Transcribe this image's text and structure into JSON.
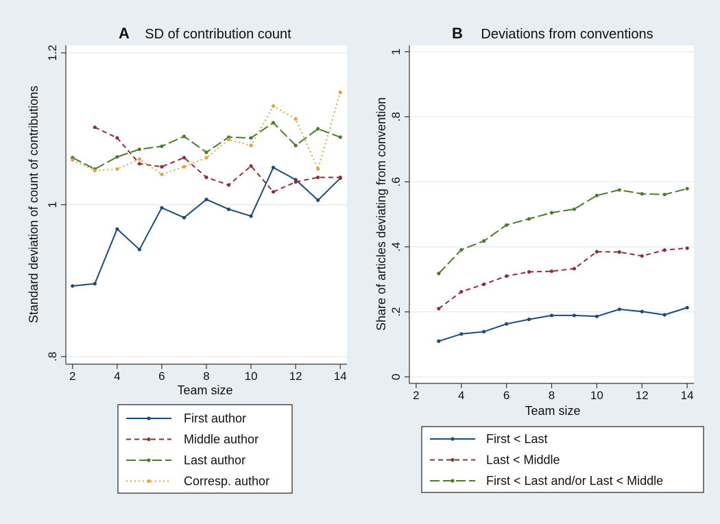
{
  "colors": {
    "navy": "#1a4a7a",
    "maroon": "#8f2d35",
    "green": "#4b7a2b",
    "orange": "#e6a040",
    "background": "#e9eef2"
  },
  "chart_data": [
    {
      "type": "line",
      "panel_letter": "A",
      "title": "SD of contribution count",
      "xlabel": "Team size",
      "ylabel": "Standard deviation of count of contributions",
      "xlim": [
        1.7,
        14.3
      ],
      "ylim": [
        0.79,
        1.21
      ],
      "xticks": [
        2,
        4,
        6,
        8,
        10,
        12,
        14
      ],
      "xtick_labels": [
        "2",
        "4",
        "6",
        "8",
        "10",
        "12",
        "14"
      ],
      "yticks": [
        0.8,
        1.0,
        1.2
      ],
      "ytick_labels": [
        ".8",
        "1",
        "1.2"
      ],
      "grid": true,
      "legend_placement": "below",
      "series": [
        {
          "name": "First author",
          "color": "#1a4a7a",
          "dash": "solid",
          "x": [
            2,
            3,
            4,
            5,
            6,
            7,
            8,
            9,
            10,
            11,
            12,
            13,
            14
          ],
          "y": [
            0.893,
            0.896,
            0.968,
            0.941,
            0.996,
            0.983,
            1.007,
            0.994,
            0.985,
            1.049,
            1.033,
            1.006,
            1.035
          ]
        },
        {
          "name": "Middle author",
          "color": "#8f2d35",
          "dash": "dash",
          "x": [
            3,
            4,
            5,
            6,
            7,
            8,
            9,
            10,
            11,
            12,
            13,
            14
          ],
          "y": [
            1.102,
            1.088,
            1.054,
            1.05,
            1.062,
            1.036,
            1.026,
            1.051,
            1.017,
            1.03,
            1.036,
            1.036
          ]
        },
        {
          "name": "Last author",
          "color": "#4b7a2b",
          "dash": "longdash",
          "x": [
            2,
            3,
            4,
            5,
            6,
            7,
            8,
            9,
            10,
            11,
            12,
            13,
            14
          ],
          "y": [
            1.062,
            1.047,
            1.063,
            1.073,
            1.077,
            1.09,
            1.069,
            1.089,
            1.088,
            1.108,
            1.078,
            1.1,
            1.089
          ]
        },
        {
          "name": "Corresp. author",
          "color": "#e6a040",
          "dash": "dot",
          "x": [
            2,
            3,
            4,
            5,
            6,
            7,
            8,
            9,
            10,
            11,
            12,
            13,
            14
          ],
          "y": [
            1.059,
            1.045,
            1.047,
            1.06,
            1.04,
            1.05,
            1.062,
            1.086,
            1.078,
            1.13,
            1.113,
            1.047,
            1.148
          ]
        }
      ]
    },
    {
      "type": "line",
      "panel_letter": "B",
      "title": "Deviations from conventions",
      "xlabel": "Team size",
      "ylabel": "Share of articles deviating from convention",
      "xlim": [
        1.7,
        14.3
      ],
      "ylim": [
        -0.02,
        1.02
      ],
      "xticks": [
        2,
        4,
        6,
        8,
        10,
        12,
        14
      ],
      "xtick_labels": [
        "2",
        "4",
        "6",
        "8",
        "10",
        "12",
        "14"
      ],
      "yticks": [
        0,
        0.2,
        0.4,
        0.6,
        0.8,
        1
      ],
      "ytick_labels": [
        "0",
        ".2",
        ".4",
        ".6",
        ".8",
        "1"
      ],
      "grid": true,
      "legend_placement": "below",
      "series": [
        {
          "name": "First < Last",
          "color": "#1a4a7a",
          "dash": "solid",
          "x": [
            3,
            4,
            5,
            6,
            7,
            8,
            9,
            10,
            11,
            12,
            13,
            14
          ],
          "y": [
            0.11,
            0.132,
            0.139,
            0.163,
            0.177,
            0.189,
            0.189,
            0.186,
            0.208,
            0.201,
            0.191,
            0.213
          ]
        },
        {
          "name": "Last < Middle",
          "color": "#8f2d35",
          "dash": "dash",
          "x": [
            3,
            4,
            5,
            6,
            7,
            8,
            9,
            10,
            11,
            12,
            13,
            14
          ],
          "y": [
            0.21,
            0.262,
            0.285,
            0.31,
            0.323,
            0.325,
            0.333,
            0.385,
            0.384,
            0.372,
            0.39,
            0.396
          ]
        },
        {
          "name": "First < Last and/or Last < Middle",
          "color": "#4b7a2b",
          "dash": "longdash",
          "x": [
            3,
            4,
            5,
            6,
            7,
            8,
            9,
            10,
            11,
            12,
            13,
            14
          ],
          "y": [
            0.318,
            0.391,
            0.418,
            0.467,
            0.486,
            0.505,
            0.516,
            0.558,
            0.575,
            0.563,
            0.561,
            0.579
          ]
        }
      ]
    }
  ]
}
